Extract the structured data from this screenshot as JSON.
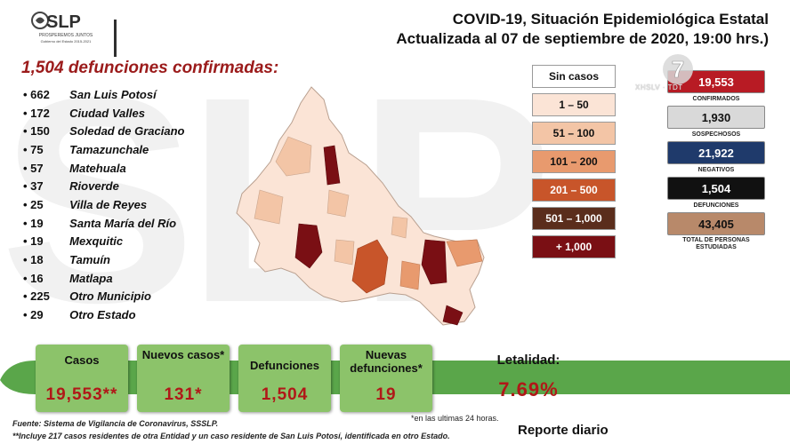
{
  "watermark": "SLP",
  "logo": {
    "name": "SLP",
    "tagline": "PROSPEREMOS JUNTOS",
    "subline": "Gobierno del Estado 2015-2021"
  },
  "header": {
    "title": "COVID-19, Situación Epidemiológica Estatal",
    "subtitle": "Actualizada al 07 de septiembre de 2020, 19:00 hrs.)"
  },
  "deaths_title": "1,504 defunciones confirmadas:",
  "deaths_by_municipality": [
    {
      "count": "662",
      "name": "San Luis Potosí"
    },
    {
      "count": "172",
      "name": "Ciudad Valles"
    },
    {
      "count": "150",
      "name": "Soledad de Graciano"
    },
    {
      "count": "75",
      "name": "Tamazunchale"
    },
    {
      "count": "57",
      "name": "Matehuala"
    },
    {
      "count": "37",
      "name": "Rioverde"
    },
    {
      "count": "25",
      "name": "Villa de Reyes"
    },
    {
      "count": "19",
      "name": "Santa María del Río"
    },
    {
      "count": "19",
      "name": "Mexquitic"
    },
    {
      "count": "18",
      "name": "Tamuín"
    },
    {
      "count": "16",
      "name": "Matlapa"
    },
    {
      "count": "225",
      "name": "Otro Municipio"
    },
    {
      "count": "29",
      "name": "Otro Estado"
    }
  ],
  "legend": [
    {
      "label": "Sin casos",
      "bg": "#ffffff",
      "fg": "#111111"
    },
    {
      "label": "1 – 50",
      "bg": "#fbe4d6",
      "fg": "#111111"
    },
    {
      "label": "51 – 100",
      "bg": "#f3c5a6",
      "fg": "#111111"
    },
    {
      "label": "101 – 200",
      "bg": "#e89a6e",
      "fg": "#111111"
    },
    {
      "label": "201 – 500",
      "bg": "#c8552a",
      "fg": "#ffffff"
    },
    {
      "label": "501 – 1,000",
      "bg": "#5a2d1c",
      "fg": "#ffffff"
    },
    {
      "label": "+ 1,000",
      "bg": "#7a0f14",
      "fg": "#ffffff"
    }
  ],
  "stats": [
    {
      "value": "19,553",
      "label": "CONFIRMADOS",
      "bg": "#b81b24",
      "fg": "#ffffff"
    },
    {
      "value": "1,930",
      "label": "SOSPECHOSOS",
      "bg": "#d9d9d9",
      "fg": "#111111"
    },
    {
      "value": "21,922",
      "label": "NEGATIVOS",
      "bg": "#1f3a6b",
      "fg": "#ffffff"
    },
    {
      "value": "1,504",
      "label": "DEFUNCIONES",
      "bg": "#111111",
      "fg": "#ffffff"
    },
    {
      "value": "43,405",
      "label": "TOTAL DE PERSONAS ESTUDIADAS",
      "bg": "#b8896a",
      "fg": "#111111"
    }
  ],
  "channel": {
    "mark": "7",
    "caption": "XHSLV · TDT"
  },
  "summary": [
    {
      "label": "Casos",
      "value": "19,553**"
    },
    {
      "label": "Nuevos casos*",
      "value": "131*"
    },
    {
      "label": "Defunciones",
      "value": "1,504"
    },
    {
      "label": "Nuevas defunciones*",
      "value": "19"
    },
    {
      "label": "Letalidad:",
      "value": "7.69%"
    }
  ],
  "footer": {
    "source": "Fuente: Sistema de Vigilancia de Coronavirus, SSSLP.",
    "footnote": "**Incluye 217 casos residentes de otra Entidad y un caso residente de San Luis Potosí, identificada en otro Estado.",
    "note": "*en las ultimas 24 horas.",
    "report": "Reporte diario"
  },
  "colors": {
    "accent_red": "#9b1b1b",
    "card_green": "#8cc36a",
    "bar_green": "#5aa64a"
  }
}
